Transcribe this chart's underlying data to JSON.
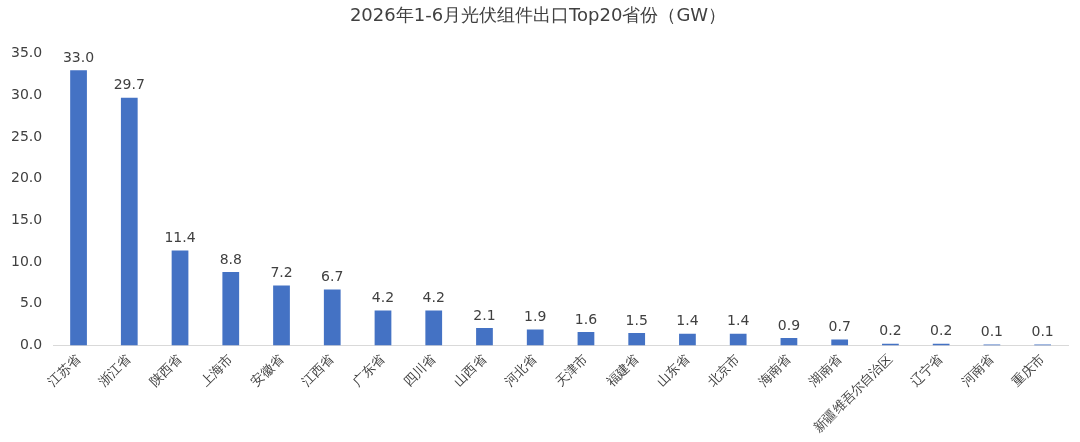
{
  "chart_data": {
    "type": "bar",
    "title": "2026年1-6月光伏组件出口Top20省份（GW）",
    "categories": [
      "江苏省",
      "浙江省",
      "陕西省",
      "上海市",
      "安徽省",
      "江西省",
      "广东省",
      "四川省",
      "山西省",
      "河北省",
      "天津市",
      "福建省",
      "山东省",
      "北京市",
      "海南省",
      "湖南省",
      "新疆维吾尔自治区",
      "辽宁省",
      "河南省",
      "重庆市"
    ],
    "values": [
      33.0,
      29.7,
      11.4,
      8.8,
      7.2,
      6.7,
      4.2,
      4.2,
      2.1,
      1.9,
      1.6,
      1.5,
      1.4,
      1.4,
      0.9,
      0.7,
      0.2,
      0.2,
      0.1,
      0.1
    ],
    "value_labels": [
      "33.0",
      "29.7",
      "11.4",
      "8.8",
      "7.2",
      "6.7",
      "4.2",
      "4.2",
      "2.1",
      "1.9",
      "1.6",
      "1.5",
      "1.4",
      "1.4",
      "0.9",
      "0.7",
      "0.2",
      "0.2",
      "0.1",
      "0.1"
    ],
    "color": "#4472c4",
    "ylim": [
      0,
      35
    ],
    "yticks": [
      {
        "value": 0,
        "label": "0.0"
      },
      {
        "value": 5,
        "label": "5.0"
      },
      {
        "value": 10,
        "label": "10.0"
      },
      {
        "value": 15,
        "label": "15.0"
      },
      {
        "value": 20,
        "label": "20.0"
      },
      {
        "value": 25,
        "label": "25.0"
      },
      {
        "value": 30,
        "label": "30.0"
      },
      {
        "value": 35,
        "label": "35.0"
      }
    ],
    "grid": false,
    "legend": false
  }
}
